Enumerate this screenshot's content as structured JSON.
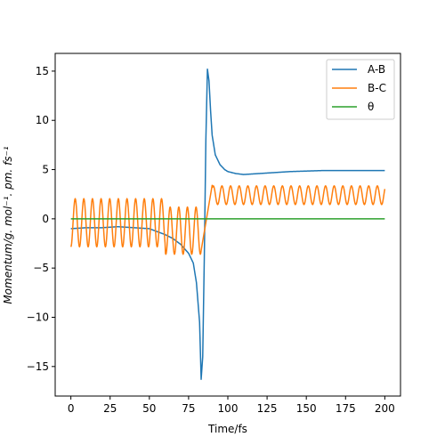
{
  "chart_data": {
    "type": "line",
    "title": "",
    "xlabel": "Time/fs",
    "ylabel": "Momentum/g. mol⁻¹. pm. fs⁻¹",
    "xlim": [
      -10,
      210
    ],
    "ylim": [
      -18,
      16.8
    ],
    "xticks": [
      0,
      25,
      50,
      75,
      100,
      125,
      150,
      175,
      200
    ],
    "yticks": [
      -15,
      -10,
      -5,
      0,
      5,
      10,
      15
    ],
    "grid": false,
    "legend_position": "top-right",
    "series": [
      {
        "name": "A-B",
        "color": "#1f77b4",
        "x": [
          0,
          10,
          20,
          30,
          40,
          50,
          55,
          60,
          65,
          70,
          75,
          78,
          80,
          82,
          83,
          84,
          85,
          86,
          87,
          88,
          89,
          90,
          92,
          95,
          98,
          100,
          105,
          110,
          115,
          120,
          130,
          140,
          150,
          160,
          175,
          190,
          200
        ],
        "y": [
          -1.0,
          -0.9,
          -0.9,
          -0.8,
          -0.9,
          -1.0,
          -1.3,
          -1.6,
          -2.0,
          -2.6,
          -3.5,
          -4.5,
          -6.5,
          -10.5,
          -16.3,
          -14.0,
          -4.0,
          8.0,
          15.2,
          14.0,
          11.0,
          8.5,
          6.5,
          5.5,
          5.0,
          4.8,
          4.6,
          4.5,
          4.55,
          4.6,
          4.7,
          4.8,
          4.85,
          4.9,
          4.9,
          4.9,
          4.9
        ]
      },
      {
        "name": "B-C",
        "color": "#ff7f0e",
        "period_fs": 5.5,
        "segments": [
          {
            "x_start": 0,
            "x_end": 60,
            "center": -0.4,
            "amplitude": 2.45
          },
          {
            "x_start": 60,
            "x_end": 83,
            "center": -1.2,
            "amplitude": 2.4
          },
          {
            "x_start": 83,
            "x_end": 90,
            "transition_to": 3.4
          },
          {
            "x_start": 90,
            "x_end": 200,
            "center": 2.4,
            "amplitude": 0.95
          }
        ]
      },
      {
        "name": "θ",
        "color": "#2ca02c",
        "x": [
          0,
          200
        ],
        "y": [
          0,
          0
        ]
      }
    ]
  }
}
